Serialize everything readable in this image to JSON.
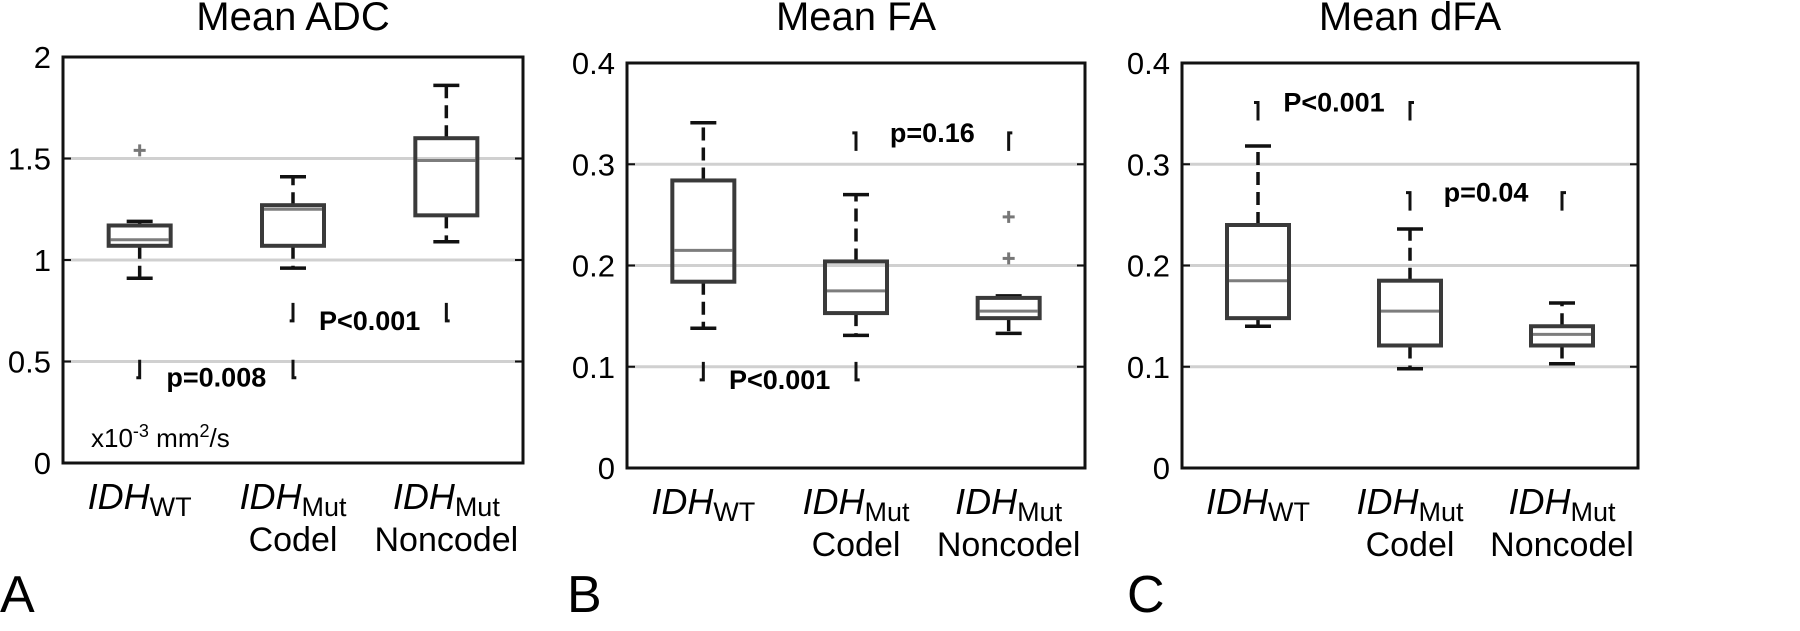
{
  "chart_data": [
    {
      "type": "box",
      "panel_label": "A",
      "title": "Mean ADC",
      "ylim": [
        0,
        2
      ],
      "yticks": [
        "0",
        "0.5",
        "1",
        "1.5",
        "2"
      ],
      "ytick_values": [
        0,
        0.5,
        1,
        1.5,
        2
      ],
      "grid": "horizontal",
      "unit_label": {
        "prefix": "x10",
        "exp": "-3",
        "mid": " mm",
        "exp2": "2",
        "suffix": "/s"
      },
      "categories": [
        {
          "main": "IDH",
          "sub": "WT",
          "second": ""
        },
        {
          "main": "IDH",
          "sub": "Mut",
          "second": "Codel"
        },
        {
          "main": "IDH",
          "sub": "Mut",
          "second": "Noncodel"
        }
      ],
      "boxes": [
        {
          "whisker_low": 0.91,
          "q1": 1.07,
          "median": 1.1,
          "q3": 1.17,
          "whisker_high": 1.19,
          "outliers": [
            1.54
          ]
        },
        {
          "whisker_low": 0.96,
          "q1": 1.07,
          "median": 1.25,
          "q3": 1.27,
          "whisker_high": 1.41,
          "outliers": []
        },
        {
          "whisker_low": 1.09,
          "q1": 1.22,
          "median": 1.49,
          "q3": 1.6,
          "whisker_high": 1.86,
          "outliers": []
        }
      ],
      "comparisons": [
        {
          "from": 1,
          "to": 2,
          "label": "p=0.008",
          "orientation": "up",
          "y": 0.42
        },
        {
          "from": 2,
          "to": 3,
          "label": "P<0.001",
          "orientation": "up",
          "y": 0.7
        }
      ]
    },
    {
      "type": "box",
      "panel_label": "B",
      "title": "Mean FA",
      "ylim": [
        0,
        0.4
      ],
      "yticks": [
        "0",
        "0.1",
        "0.2",
        "0.3",
        "0.4"
      ],
      "ytick_values": [
        0,
        0.1,
        0.2,
        0.3,
        0.4
      ],
      "grid": "horizontal",
      "categories": [
        {
          "main": "IDH",
          "sub": "WT",
          "second": ""
        },
        {
          "main": "IDH",
          "sub": "Mut",
          "second": "Codel"
        },
        {
          "main": "IDH",
          "sub": "Mut",
          "second": "Noncodel"
        }
      ],
      "boxes": [
        {
          "whisker_low": 0.138,
          "q1": 0.184,
          "median": 0.215,
          "q3": 0.284,
          "whisker_high": 0.341,
          "outliers": []
        },
        {
          "whisker_low": 0.131,
          "q1": 0.153,
          "median": 0.175,
          "q3": 0.204,
          "whisker_high": 0.27,
          "outliers": []
        },
        {
          "whisker_low": 0.133,
          "q1": 0.148,
          "median": 0.155,
          "q3": 0.168,
          "whisker_high": 0.17,
          "outliers": [
            0.207,
            0.248
          ]
        }
      ],
      "comparisons": [
        {
          "from": 1,
          "to": 2,
          "label": "P<0.001",
          "orientation": "up",
          "y": 0.087
        },
        {
          "from": 2,
          "to": 3,
          "label": "p=0.16",
          "orientation": "down",
          "y": 0.331
        }
      ]
    },
    {
      "type": "box",
      "panel_label": "C",
      "title": "Mean dFA",
      "ylim": [
        0,
        0.4
      ],
      "yticks": [
        "0",
        "0.1",
        "0.2",
        "0.3",
        "0.4"
      ],
      "ytick_values": [
        0,
        0.1,
        0.2,
        0.3,
        0.4
      ],
      "grid": "horizontal",
      "categories": [
        {
          "main": "IDH",
          "sub": "WT",
          "second": ""
        },
        {
          "main": "IDH",
          "sub": "Mut",
          "second": "Codel"
        },
        {
          "main": "IDH",
          "sub": "Mut",
          "second": "Noncodel"
        }
      ],
      "boxes": [
        {
          "whisker_low": 0.14,
          "q1": 0.148,
          "median": 0.185,
          "q3": 0.24,
          "whisker_high": 0.318,
          "outliers": []
        },
        {
          "whisker_low": 0.098,
          "q1": 0.121,
          "median": 0.155,
          "q3": 0.185,
          "whisker_high": 0.236,
          "outliers": []
        },
        {
          "whisker_low": 0.103,
          "q1": 0.121,
          "median": 0.132,
          "q3": 0.14,
          "whisker_high": 0.163,
          "outliers": []
        }
      ],
      "comparisons": [
        {
          "from": 1,
          "to": 2,
          "label": "P<0.001",
          "orientation": "down",
          "y": 0.361
        },
        {
          "from": 2,
          "to": 3,
          "label": "p=0.04",
          "orientation": "down",
          "y": 0.272
        }
      ]
    }
  ]
}
